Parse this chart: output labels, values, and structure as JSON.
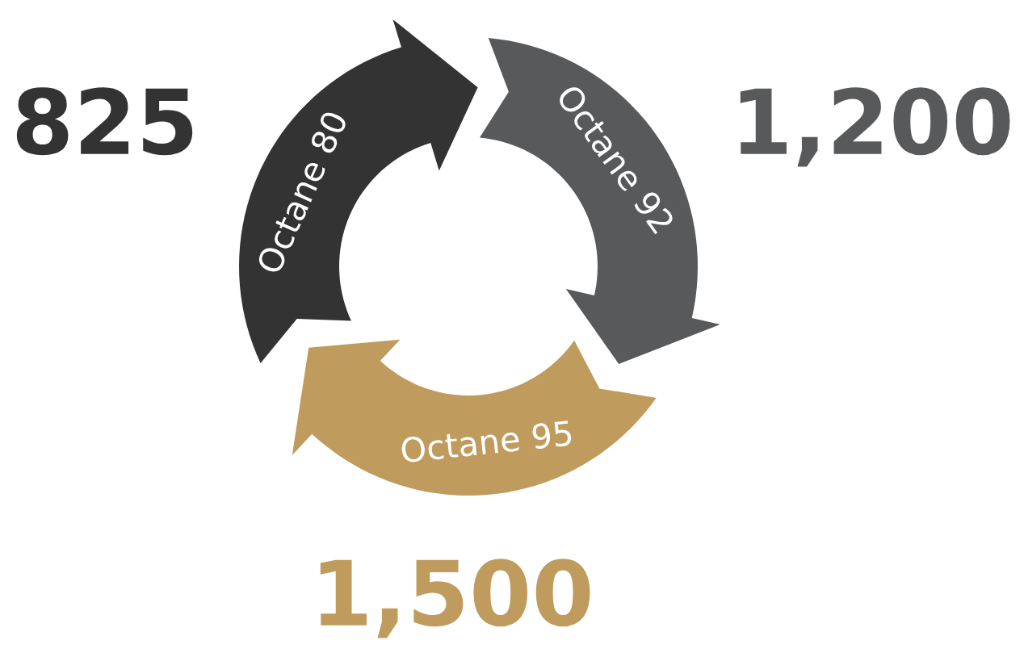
{
  "chart_data": {
    "type": "other",
    "categories": [
      "Octane 80",
      "Octane 92",
      "Octane 95"
    ],
    "values": [
      825,
      1200,
      1500
    ],
    "value_labels": [
      "825",
      "1,200",
      "1,500"
    ],
    "colors": [
      "#333333",
      "#58595b",
      "#bf9b5e"
    ]
  }
}
